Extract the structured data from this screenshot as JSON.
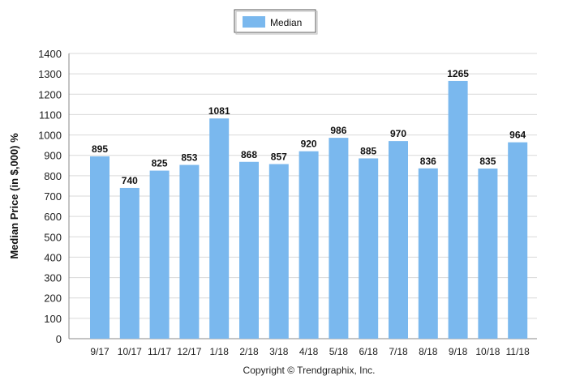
{
  "chart_data": {
    "type": "bar",
    "categories": [
      "9/17",
      "10/17",
      "11/17",
      "12/17",
      "1/18",
      "2/18",
      "3/18",
      "4/18",
      "5/18",
      "6/18",
      "7/18",
      "8/18",
      "9/18",
      "10/18",
      "11/18"
    ],
    "series": [
      {
        "name": "Median",
        "values": [
          895,
          740,
          825,
          853,
          1081,
          868,
          857,
          920,
          986,
          885,
          970,
          836,
          1265,
          835,
          964
        ]
      }
    ],
    "ylabel": "Median Price (in $,000) %",
    "xlabel": "",
    "ylim": [
      0,
      1400
    ],
    "yticks": [
      0,
      100,
      200,
      300,
      400,
      500,
      600,
      700,
      800,
      900,
      1000,
      1100,
      1200,
      1300,
      1400
    ],
    "grid": true,
    "legend_position": "top-center",
    "bar_color": "#7ab8ee",
    "footer": "Copyright © Trendgraphix, Inc."
  }
}
